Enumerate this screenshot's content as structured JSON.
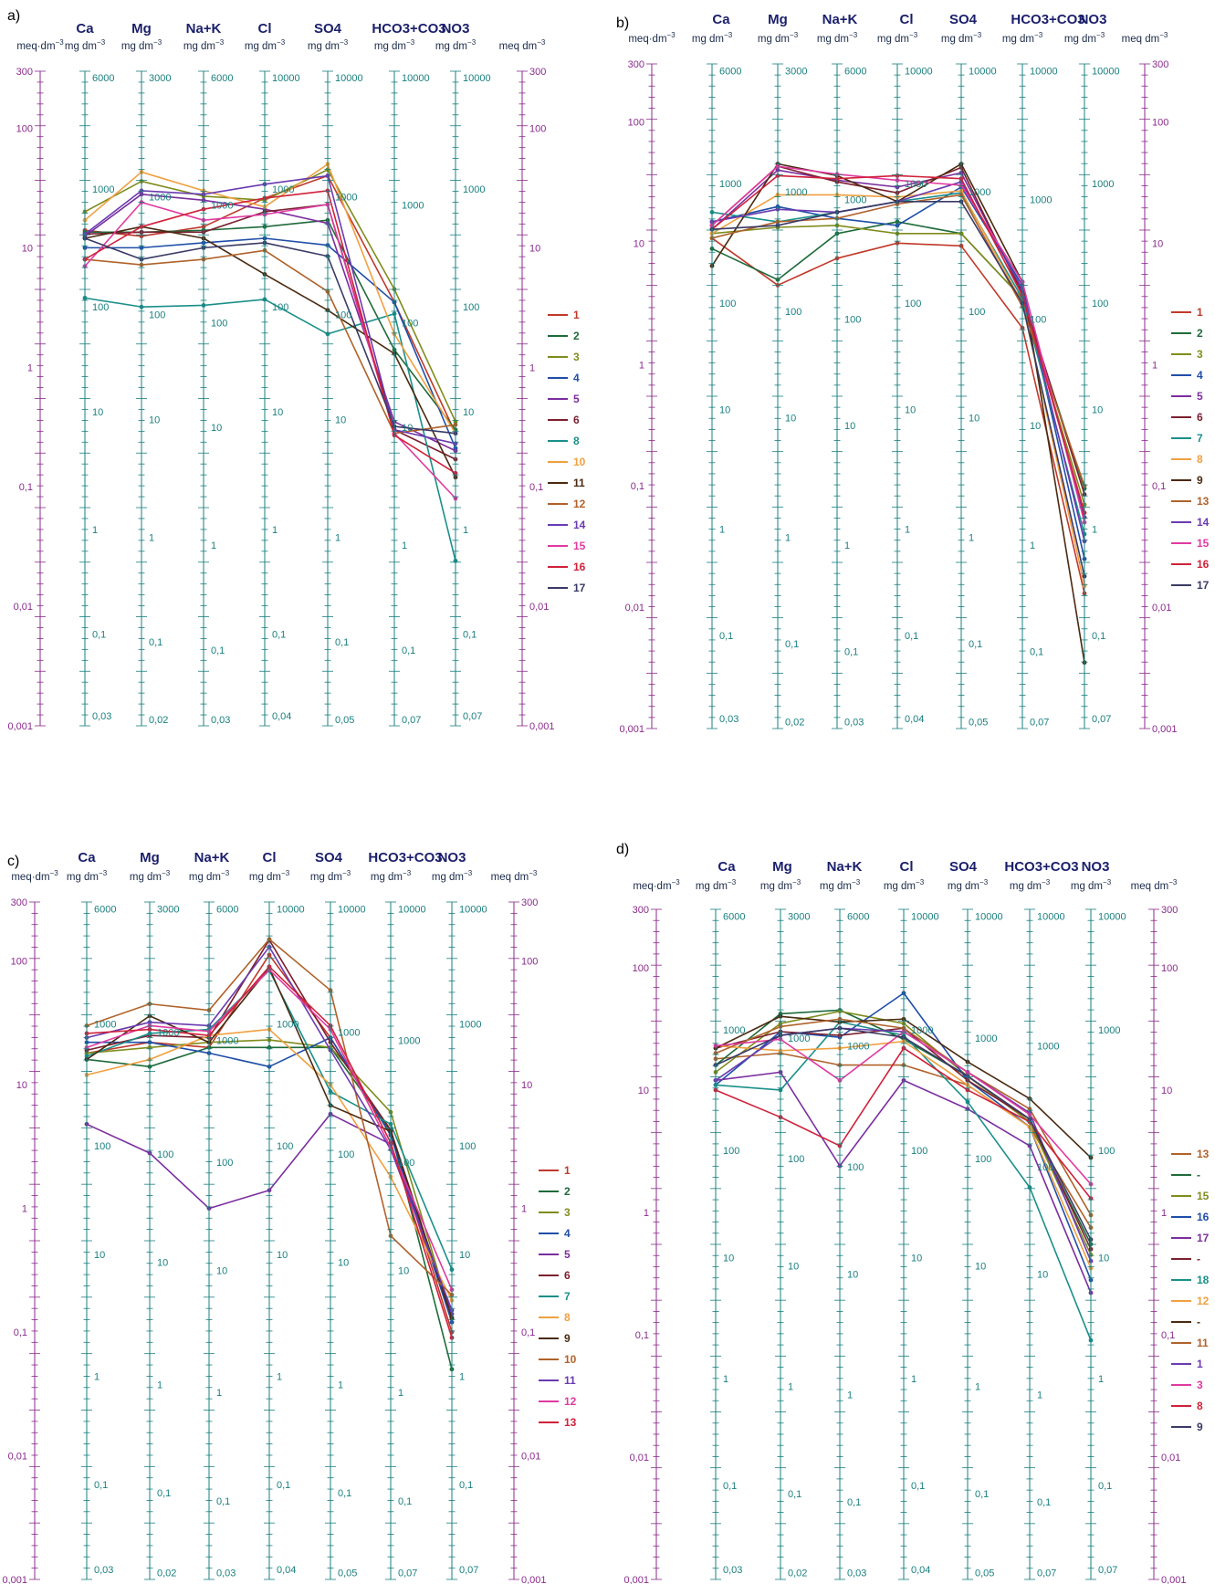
{
  "figure_labels": [
    "a)",
    "b)",
    "c)",
    "d)"
  ],
  "ions": [
    "Ca",
    "Mg",
    "Na+K",
    "Cl",
    "SO4",
    "HCO3+CO3",
    "NO3"
  ],
  "units": {
    "meq": "meq·dm",
    "mg": "mg dm",
    "meq_right": "meq dm",
    "exp": "−3"
  },
  "meq_ticks": [
    "300",
    "100",
    "10",
    "1",
    "0,1",
    "0,01",
    "0,001"
  ],
  "conc_ticks": [
    [
      "6000",
      "1000",
      "100",
      "10",
      "1",
      "0,1",
      "0,03"
    ],
    [
      "3000",
      "1000",
      "100",
      "10",
      "1",
      "0,1",
      "0,02"
    ],
    [
      "6000",
      "1000",
      "100",
      "10",
      "1",
      "0,1",
      "0,03"
    ],
    [
      "10000",
      "1000",
      "100",
      "10",
      "1",
      "0,1",
      "0,04"
    ],
    [
      "10000",
      "1000",
      "100",
      "10",
      "1",
      "0,1",
      "0,05"
    ],
    [
      "10000",
      "1000",
      "100",
      "10",
      "1",
      "0,1",
      "0,07"
    ],
    [
      "10000",
      "1000",
      "100",
      "10",
      "1",
      "0,1",
      "0,07"
    ]
  ],
  "colors": {
    "meq_axis": "#8a2b8c",
    "conc_axis": "#1a7f7f",
    "ion_label": "#1b1f6b"
  },
  "chart_data": [
    {
      "type": "line",
      "panel": "a)",
      "x": [
        "Ca",
        "Mg",
        "Na+K",
        "Cl",
        "SO4",
        "HCO3+CO3",
        "NO3"
      ],
      "y_scale": "log",
      "ylim": [
        0.001,
        300
      ],
      "ylabel_left": "meq·dm−3",
      "ylabel_right": "meq dm−3",
      "legend_position": "right",
      "series": [
        {
          "name": "1",
          "color": "#c0392b",
          "values": [
            14,
            12.5,
            15,
            26,
            40,
            3.5,
            0.28
          ]
        },
        {
          "name": "2",
          "color": "#1e6b3a",
          "values": [
            13.5,
            13.5,
            14,
            15,
            17,
            1.4,
            0.3
          ]
        },
        {
          "name": "3",
          "color": "#7f8c1c",
          "values": [
            20,
            36,
            27,
            25,
            45,
            4.5,
            0.35
          ]
        },
        {
          "name": "4",
          "color": "#1f4ea8",
          "values": [
            10,
            10,
            11,
            12,
            10.5,
            3.5,
            0.21
          ]
        },
        {
          "name": "5",
          "color": "#7b2d9e",
          "values": [
            12.5,
            28,
            25,
            21,
            16,
            0.35,
            0.2
          ]
        },
        {
          "name": "6",
          "color": "#7b2030",
          "values": [
            13,
            13.5,
            13.5,
            20,
            23,
            0.3,
            0.17
          ]
        },
        {
          "name": "8",
          "color": "#1a8f8a",
          "values": [
            3.8,
            3.2,
            3.3,
            3.7,
            1.9,
            2.8,
            0.024
          ]
        },
        {
          "name": "10",
          "color": "#f0a040",
          "values": [
            17,
            43,
            30,
            22,
            50,
            1.9,
            0.28
          ]
        },
        {
          "name": "11",
          "color": "#4a2a10",
          "values": [
            12,
            15,
            12,
            6,
            3,
            1.3,
            0.12
          ]
        },
        {
          "name": "12",
          "color": "#b0622a",
          "values": [
            8,
            7.2,
            8,
            9.5,
            4.3,
            0.28,
            0.33
          ]
        },
        {
          "name": "14",
          "color": "#6a3ab0",
          "values": [
            13,
            30,
            28,
            34,
            40,
            0.3,
            0.23
          ]
        },
        {
          "name": "15",
          "color": "#e03aa0",
          "values": [
            7,
            24,
            17,
            19,
            23,
            0.28,
            0.08
          ]
        },
        {
          "name": "16",
          "color": "#d0213a",
          "values": [
            8,
            15,
            21,
            26,
            30,
            0.27,
            0.13
          ]
        },
        {
          "name": "17",
          "color": "#3a3a66",
          "values": [
            12,
            8,
            10,
            11,
            8.5,
            0.32,
            0.28
          ]
        }
      ]
    },
    {
      "type": "line",
      "panel": "b)",
      "x": [
        "Ca",
        "Mg",
        "Na+K",
        "Cl",
        "SO4",
        "HCO3+CO3",
        "NO3"
      ],
      "y_scale": "log",
      "ylim": [
        0.001,
        300
      ],
      "ylabel_left": "meq·dm−3",
      "ylabel_right": "meq dm−3",
      "legend_position": "right",
      "series": [
        {
          "name": "1",
          "color": "#c0392b",
          "values": [
            11,
            4.5,
            7.5,
            10,
            9.5,
            2,
            0.013
          ]
        },
        {
          "name": "2",
          "color": "#1e6b3a",
          "values": [
            9,
            5,
            12,
            15,
            12,
            3.5,
            0.095
          ]
        },
        {
          "name": "3",
          "color": "#7f8c1c",
          "values": [
            12,
            13.5,
            14,
            12,
            12,
            3.5,
            0.07
          ]
        },
        {
          "name": "4",
          "color": "#1f4ea8",
          "values": [
            15,
            20,
            16,
            14,
            29,
            4.5,
            0.025
          ]
        },
        {
          "name": "5",
          "color": "#7b2d9e",
          "values": [
            13,
            40,
            33,
            29,
            38,
            4,
            0.055
          ]
        },
        {
          "name": "6",
          "color": "#7b2030",
          "values": [
            14,
            43,
            32,
            26,
            42,
            3.8,
            0.085
          ]
        },
        {
          "name": "7",
          "color": "#1a8f8a",
          "values": [
            18,
            15,
            18,
            22,
            26,
            3.5,
            0.04
          ]
        },
        {
          "name": "8",
          "color": "#f0a040",
          "values": [
            12,
            25,
            25,
            24,
            27,
            3.2,
            0.015
          ]
        },
        {
          "name": "9",
          "color": "#4a2a10",
          "values": [
            6.5,
            45,
            36,
            22,
            45,
            4.8,
            0.0035
          ]
        },
        {
          "name": "13",
          "color": "#b0622a",
          "values": [
            11,
            15,
            16,
            21,
            25,
            3,
            0.1
          ]
        },
        {
          "name": "14",
          "color": "#6a3ab0",
          "values": [
            15,
            19,
            18,
            22,
            32,
            4.2,
            0.035
          ]
        },
        {
          "name": "15",
          "color": "#e03aa0",
          "values": [
            14,
            43,
            37,
            33,
            30,
            4.8,
            0.05
          ]
        },
        {
          "name": "16",
          "color": "#d0213a",
          "values": [
            13,
            36,
            34,
            36,
            34,
            3.7,
            0.06
          ]
        },
        {
          "name": "17",
          "color": "#3a3a66",
          "values": [
            13,
            14,
            18,
            22,
            22,
            3.2,
            0.018
          ]
        }
      ]
    },
    {
      "type": "line",
      "panel": "c)",
      "x": [
        "Ca",
        "Mg",
        "Na+K",
        "Cl",
        "SO4",
        "HCO3+CO3",
        "NO3"
      ],
      "y_scale": "log",
      "ylim": [
        0.001,
        300
      ],
      "ylabel_left": "meq·dm−3",
      "ylabel_right": "meq dm−3",
      "legend_position": "right",
      "series": [
        {
          "name": "1",
          "color": "#c0392b",
          "values": [
            18,
            22,
            20,
            112,
            24,
            4,
            0.1
          ]
        },
        {
          "name": "2",
          "color": "#1e6b3a",
          "values": [
            16,
            14,
            20,
            20,
            20,
            4.2,
            0.05
          ]
        },
        {
          "name": "3",
          "color": "#7f8c1c",
          "values": [
            18,
            20,
            22,
            23,
            20,
            6,
            0.13
          ]
        },
        {
          "name": "4",
          "color": "#1f4ea8",
          "values": [
            22,
            22,
            18,
            14,
            24,
            3.9,
            0.12
          ]
        },
        {
          "name": "5",
          "color": "#7b2d9e",
          "values": [
            4.8,
            2.8,
            1,
            1.4,
            5.8,
            3.3,
            0.14
          ]
        },
        {
          "name": "6",
          "color": "#7b2030",
          "values": [
            19,
            25,
            24,
            148,
            22,
            4.3,
            0.13
          ]
        },
        {
          "name": "7",
          "color": "#1a8f8a",
          "values": [
            17,
            26,
            28,
            84,
            8.8,
            4.8,
            0.32
          ]
        },
        {
          "name": "8",
          "color": "#f0a040",
          "values": [
            12,
            16,
            25,
            28,
            10,
            1.8,
            0.18
          ]
        },
        {
          "name": "9",
          "color": "#4a2a10",
          "values": [
            16,
            36,
            22,
            88,
            6.8,
            4.2,
            0.13
          ]
        },
        {
          "name": "10",
          "color": "#b0622a",
          "values": [
            30,
            45,
            40,
            150,
            58,
            0.6,
            0.2
          ]
        },
        {
          "name": "11",
          "color": "#6a3ab0",
          "values": [
            24,
            32,
            30,
            130,
            19,
            3,
            0.15
          ]
        },
        {
          "name": "12",
          "color": "#e03aa0",
          "values": [
            20,
            30,
            27,
            85,
            28,
            3.1,
            0.22
          ]
        },
        {
          "name": "13",
          "color": "#d0213a",
          "values": [
            26,
            28,
            25,
            90,
            30,
            3.4,
            0.09
          ]
        }
      ]
    },
    {
      "type": "line",
      "panel": "d)",
      "x": [
        "Ca",
        "Mg",
        "Na+K",
        "Cl",
        "SO4",
        "HCO3+CO3",
        "NO3"
      ],
      "y_scale": "log",
      "ylim": [
        0.001,
        300
      ],
      "ylabel_left": "meq·dm−3",
      "ylabel_right": "meq dm−3",
      "legend_position": "right",
      "series": [
        {
          "name": "13",
          "color": "#b0622a",
          "values": [
            18,
            20,
            16,
            16,
            11,
            5,
            0.75
          ]
        },
        {
          "name": "-",
          "color": "#1e6b3a",
          "values": [
            16,
            42,
            45,
            26,
            13,
            5.5,
            0.55
          ]
        },
        {
          "name": "15",
          "color": "#7f8c1c",
          "values": [
            14,
            35,
            44,
            35,
            13,
            5.5,
            0.45
          ]
        },
        {
          "name": "16",
          "color": "#1f4ea8",
          "values": [
            11,
            30,
            27,
            62,
            12,
            5,
            0.28
          ]
        },
        {
          "name": "17",
          "color": "#7b2d9e",
          "values": [
            12,
            14,
            2.4,
            12,
            7,
            3.5,
            0.22
          ]
        },
        {
          "name": "-",
          "color": "#7b2030",
          "values": [
            22,
            30,
            28,
            32,
            12,
            5.8,
            0.5
          ]
        },
        {
          "name": "18",
          "color": "#1a8f8a",
          "values": [
            11,
            10,
            36,
            28,
            8,
            1.6,
            0.09
          ]
        },
        {
          "name": "12",
          "color": "#f0a040",
          "values": [
            23,
            21,
            22,
            25,
            11,
            5,
            0.35
          ]
        },
        {
          "name": "-",
          "color": "#4a2a10",
          "values": [
            22,
            40,
            36,
            38,
            17,
            8.5,
            2.8
          ]
        },
        {
          "name": "11",
          "color": "#b0622a",
          "values": [
            20,
            33,
            38,
            32,
            14,
            7,
            0.95
          ]
        },
        {
          "name": "1",
          "color": "#6a3ab0",
          "values": [
            12,
            28,
            32,
            30,
            14,
            6.5,
            0.4
          ]
        },
        {
          "name": "3",
          "color": "#e03aa0",
          "values": [
            23,
            26,
            12,
            30,
            14,
            6.3,
            1.7
          ]
        },
        {
          "name": "8",
          "color": "#d0213a",
          "values": [
            10,
            6,
            3.5,
            22,
            10,
            5.5,
            1.3
          ]
        },
        {
          "name": "9",
          "color": "#3a3a66",
          "values": [
            16,
            28,
            32,
            27,
            13,
            5.8,
            0.6
          ]
        }
      ]
    }
  ]
}
